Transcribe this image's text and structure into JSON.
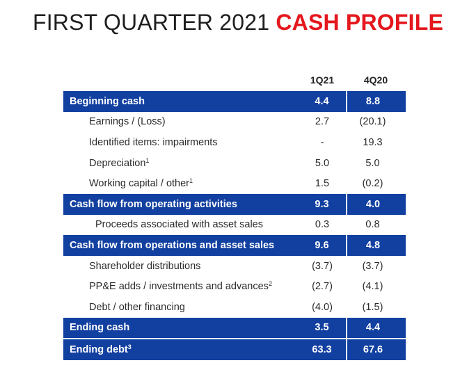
{
  "title": {
    "part1": "FIRST QUARTER 2021",
    "part2": "CASH PROFILE"
  },
  "columns": [
    "1Q21",
    "4Q20"
  ],
  "rows": [
    {
      "label": "Beginning cash",
      "sup": "",
      "q1": "4.4",
      "q2": "8.8",
      "style": "highlight"
    },
    {
      "label": "Earnings / (Loss)",
      "sup": "",
      "q1": "2.7",
      "q2": "(20.1)",
      "style": "indent"
    },
    {
      "label": "Identified items: impairments",
      "sup": "",
      "q1": "-",
      "q2": "19.3",
      "style": "indent"
    },
    {
      "label": "Depreciation",
      "sup": "1",
      "q1": "5.0",
      "q2": "5.0",
      "style": "indent"
    },
    {
      "label": "Working capital / other",
      "sup": "1",
      "q1": "1.5",
      "q2": "(0.2)",
      "style": "indent"
    },
    {
      "label": "Cash flow from operating activities",
      "sup": "",
      "q1": "9.3",
      "q2": "4.0",
      "style": "highlight"
    },
    {
      "label": "Proceeds associated with asset sales",
      "sup": "",
      "q1": "0.3",
      "q2": "0.8",
      "style": "indent2"
    },
    {
      "label": "Cash flow from operations and asset sales",
      "sup": "",
      "q1": "9.6",
      "q2": "4.8",
      "style": "highlight"
    },
    {
      "label": "Shareholder distributions",
      "sup": "",
      "q1": "(3.7)",
      "q2": "(3.7)",
      "style": "indent"
    },
    {
      "label": "PP&E adds / investments and advances",
      "sup": "2",
      "q1": "(2.7)",
      "q2": "(4.1)",
      "style": "indent"
    },
    {
      "label": "Debt / other financing",
      "sup": "",
      "q1": "(4.0)",
      "q2": "(1.5)",
      "style": "indent"
    },
    {
      "label": "Ending cash",
      "sup": "",
      "q1": "3.5",
      "q2": "4.4",
      "style": "highlight"
    },
    {
      "label": "Ending debt",
      "sup": "3",
      "q1": "63.3",
      "q2": "67.6",
      "style": "highlight"
    }
  ],
  "colors": {
    "accent_red": "#e4171d",
    "highlight_blue": "#1240a0",
    "text": "#2a2a2a"
  }
}
